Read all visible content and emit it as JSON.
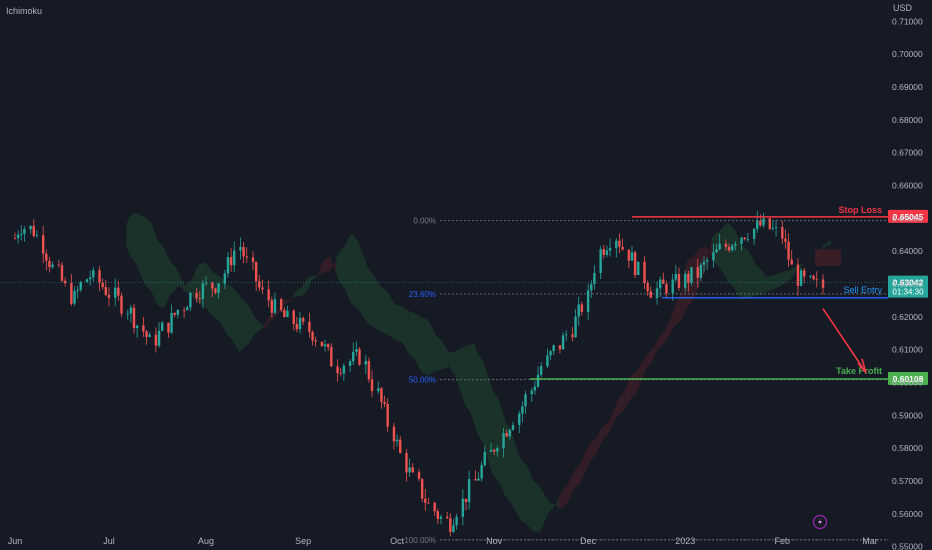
{
  "header": {
    "indicator": "Ichimoku",
    "currency": "USD"
  },
  "colors": {
    "background": "#161a25",
    "up": "#26a69a",
    "down": "#ef5350",
    "stop": "#f23645",
    "entry": "#2962ff",
    "profit": "#4caf50",
    "fib": "#787b86",
    "cloud_bull": "#1e3b2c",
    "cloud_bear": "#3e1f27"
  },
  "icons": {
    "lightning": "lightning-icon"
  },
  "chart_data": {
    "type": "candlestick",
    "ylim": [
      0.549,
      0.7165
    ],
    "y_ticks": [
      "0.71000",
      "0.70000",
      "0.69000",
      "0.68000",
      "0.67000",
      "0.66000",
      "0.65000",
      "0.64000",
      "0.63000",
      "0.62000",
      "0.61000",
      "0.60000",
      "0.59000",
      "0.58000",
      "0.57000",
      "0.56000",
      "0.55000"
    ],
    "x_ticks": [
      "Jun",
      "Jul",
      "Aug",
      "Sep",
      "Oct",
      "Nov",
      "Dec",
      "2023",
      "Feb",
      "Mar"
    ],
    "price_path": [
      [
        "2022-06-01",
        0.644
      ],
      [
        "2022-06-03",
        0.648
      ],
      [
        "2022-06-08",
        0.646
      ],
      [
        "2022-06-12",
        0.638
      ],
      [
        "2022-06-20",
        0.625
      ],
      [
        "2022-06-25",
        0.633
      ],
      [
        "2022-07-01",
        0.628
      ],
      [
        "2022-07-08",
        0.622
      ],
      [
        "2022-07-15",
        0.612
      ],
      [
        "2022-07-22",
        0.62
      ],
      [
        "2022-07-29",
        0.628
      ],
      [
        "2022-08-05",
        0.63
      ],
      [
        "2022-08-12",
        0.642
      ],
      [
        "2022-08-19",
        0.628
      ],
      [
        "2022-08-26",
        0.62
      ],
      [
        "2022-09-05",
        0.615
      ],
      [
        "2022-09-12",
        0.605
      ],
      [
        "2022-09-20",
        0.608
      ],
      [
        "2022-09-28",
        0.59
      ],
      [
        "2022-10-04",
        0.575
      ],
      [
        "2022-10-10",
        0.565
      ],
      [
        "2022-10-14",
        0.56
      ],
      [
        "2022-10-18",
        0.557
      ],
      [
        "2022-10-25",
        0.568
      ],
      [
        "2022-11-03",
        0.583
      ],
      [
        "2022-11-10",
        0.592
      ],
      [
        "2022-11-17",
        0.605
      ],
      [
        "2022-11-25",
        0.615
      ],
      [
        "2022-12-01",
        0.625
      ],
      [
        "2022-12-05",
        0.64
      ],
      [
        "2022-12-10",
        0.645
      ],
      [
        "2022-12-15",
        0.638
      ],
      [
        "2022-12-22",
        0.628
      ],
      [
        "2022-12-29",
        0.63
      ],
      [
        "2023-01-05",
        0.633
      ],
      [
        "2023-01-12",
        0.64
      ],
      [
        "2023-01-19",
        0.645
      ],
      [
        "2023-01-26",
        0.648
      ],
      [
        "2023-02-01",
        0.645
      ],
      [
        "2023-02-06",
        0.632
      ],
      [
        "2023-02-10",
        0.63
      ],
      [
        "2023-02-14",
        0.629
      ]
    ],
    "fibonacci": [
      {
        "label": "0.00%",
        "price": 0.6493
      },
      {
        "label": "23.60%",
        "price": 0.627
      },
      {
        "label": "50.00%",
        "price": 0.6009
      },
      {
        "label": "100.00%",
        "price": 0.5521
      }
    ],
    "levels": {
      "stop_loss": {
        "label": "Stop Loss",
        "price": 0.65045,
        "price_label": "0.65045"
      },
      "sell_entry": {
        "label": "Sell Entry",
        "price": 0.6258
      },
      "take_profit": {
        "label": "Take Profit",
        "price": 0.60108,
        "price_label": "0.60108"
      },
      "current": {
        "price": 0.63042,
        "price_label": "0.63042",
        "countdown": "01:34:30"
      }
    }
  }
}
